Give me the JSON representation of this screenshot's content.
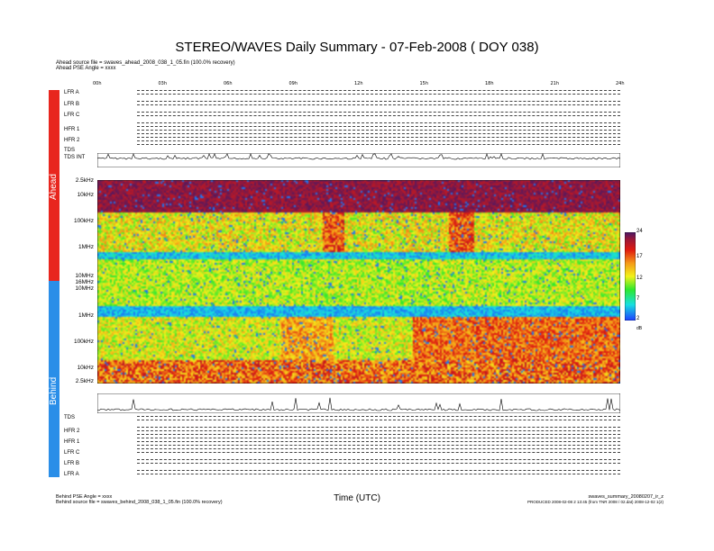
{
  "title": "STEREO/WAVES Daily Summary - 07-Feb-2008 ( DOY 038)",
  "header": {
    "ahead_source": "Ahead source file = swaves_ahead_2008_038_1_05.fin (100.0% recovery)",
    "ahead_angle": "Ahead PSE Angle = xxxx"
  },
  "footer": {
    "behind_angle": "Behind PSE Angle = xxxx",
    "behind_source": "Behind source file = swaves_behind_2008_038_1_05.fin (100.0% recovery)",
    "xlabel": "Time (UTC)",
    "file_name": "swaves_summary_20080207_ir_z",
    "produced": "PRODUCED 2008-02-08 2 13:45 (from TNR 2008 / 02.dat) 2008-12-02 1(2)"
  },
  "sides": {
    "ahead": "Ahead",
    "behind": "Behind"
  },
  "ahead_rows": [
    "LFR A",
    "LFR B",
    "LFR C",
    "HFR 1",
    "HFR 2",
    "TDS",
    "TDS INT"
  ],
  "behind_rows": [
    "TDS",
    "HFR 2",
    "HFR 1",
    "LFR C",
    "LFR B",
    "LFR A"
  ],
  "xticks": [
    "00h",
    "03h",
    "06h",
    "09h",
    "12h",
    "15h",
    "18h",
    "21h",
    "24h"
  ],
  "chart_data": {
    "type": "heatmap",
    "title": "STEREO/WAVES Daily Summary - 07-Feb-2008 ( DOY 038)",
    "xlabel": "Time (UTC)",
    "ahead_freq_ticks": [
      "2.5kHz",
      "10kHz",
      "100kHz",
      "1MHz",
      "10MHz",
      "16MHz"
    ],
    "behind_freq_ticks": [
      "10MHz",
      "1MHz",
      "100kHz",
      "10kHz",
      "2.5kHz"
    ],
    "colorbar": {
      "ticks": [
        "24",
        "17",
        "12",
        "7",
        "2"
      ],
      "unit": "dB",
      "range": [
        2,
        24
      ]
    },
    "xlim": [
      0,
      24
    ]
  }
}
